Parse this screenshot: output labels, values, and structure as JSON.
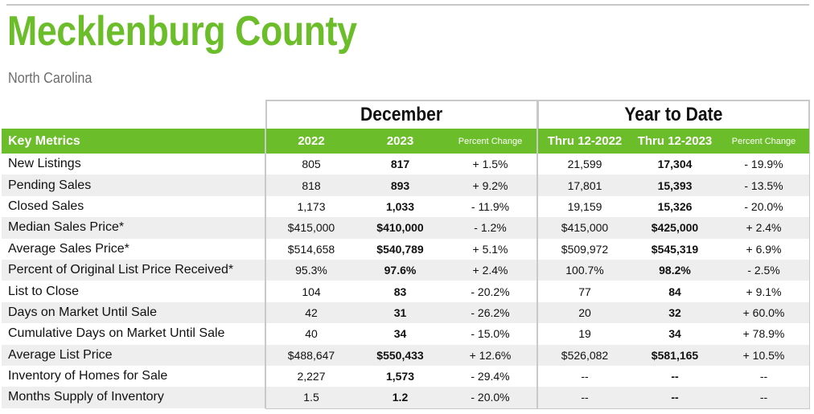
{
  "header": {
    "title": "Mecklenburg County",
    "subtitle": "North Carolina"
  },
  "groups": {
    "december": "December",
    "ytd": "Year to Date"
  },
  "columns": {
    "key": "Key Metrics",
    "dec_2022": "2022",
    "dec_2023": "2023",
    "dec_pct": "Percent Change",
    "ytd_2022": "Thru 12-2022",
    "ytd_2023": "Thru 12-2023",
    "ytd_pct": "Percent Change"
  },
  "rows": [
    {
      "metric": "New Listings",
      "dec_2022": "805",
      "dec_2023": "817",
      "dec_pct": "+ 1.5%",
      "ytd_2022": "21,599",
      "ytd_2023": "17,304",
      "ytd_pct": "- 19.9%"
    },
    {
      "metric": "Pending Sales",
      "dec_2022": "818",
      "dec_2023": "893",
      "dec_pct": "+ 9.2%",
      "ytd_2022": "17,801",
      "ytd_2023": "15,393",
      "ytd_pct": "- 13.5%"
    },
    {
      "metric": "Closed Sales",
      "dec_2022": "1,173",
      "dec_2023": "1,033",
      "dec_pct": "- 11.9%",
      "ytd_2022": "19,159",
      "ytd_2023": "15,326",
      "ytd_pct": "- 20.0%"
    },
    {
      "metric": "Median Sales Price*",
      "dec_2022": "$415,000",
      "dec_2023": "$410,000",
      "dec_pct": "- 1.2%",
      "ytd_2022": "$415,000",
      "ytd_2023": "$425,000",
      "ytd_pct": "+ 2.4%"
    },
    {
      "metric": "Average Sales Price*",
      "dec_2022": "$514,658",
      "dec_2023": "$540,789",
      "dec_pct": "+ 5.1%",
      "ytd_2022": "$509,972",
      "ytd_2023": "$545,319",
      "ytd_pct": "+ 6.9%"
    },
    {
      "metric": "Percent of Original List Price Received*",
      "dec_2022": "95.3%",
      "dec_2023": "97.6%",
      "dec_pct": "+ 2.4%",
      "ytd_2022": "100.7%",
      "ytd_2023": "98.2%",
      "ytd_pct": "- 2.5%"
    },
    {
      "metric": "List to Close",
      "dec_2022": "104",
      "dec_2023": "83",
      "dec_pct": "- 20.2%",
      "ytd_2022": "77",
      "ytd_2023": "84",
      "ytd_pct": "+ 9.1%"
    },
    {
      "metric": "Days on Market Until Sale",
      "dec_2022": "42",
      "dec_2023": "31",
      "dec_pct": "- 26.2%",
      "ytd_2022": "20",
      "ytd_2023": "32",
      "ytd_pct": "+ 60.0%"
    },
    {
      "metric": "Cumulative Days on Market Until Sale",
      "dec_2022": "40",
      "dec_2023": "34",
      "dec_pct": "- 15.0%",
      "ytd_2022": "19",
      "ytd_2023": "34",
      "ytd_pct": "+ 78.9%"
    },
    {
      "metric": "Average List Price",
      "dec_2022": "$488,647",
      "dec_2023": "$550,433",
      "dec_pct": "+ 12.6%",
      "ytd_2022": "$526,082",
      "ytd_2023": "$581,165",
      "ytd_pct": "+ 10.5%"
    },
    {
      "metric": "Inventory of Homes for Sale",
      "dec_2022": "2,227",
      "dec_2023": "1,573",
      "dec_pct": "- 29.4%",
      "ytd_2022": "--",
      "ytd_2023": "--",
      "ytd_pct": "--"
    },
    {
      "metric": "Months Supply of Inventory",
      "dec_2022": "1.5",
      "dec_2023": "1.2",
      "dec_pct": "- 20.0%",
      "ytd_2022": "--",
      "ytd_2023": "--",
      "ytd_pct": "--"
    }
  ],
  "colors": {
    "accent": "#6cbd2a",
    "subtitle": "#6d6d6d",
    "stripe": "#eeeeee",
    "border": "#c9c9c9"
  }
}
